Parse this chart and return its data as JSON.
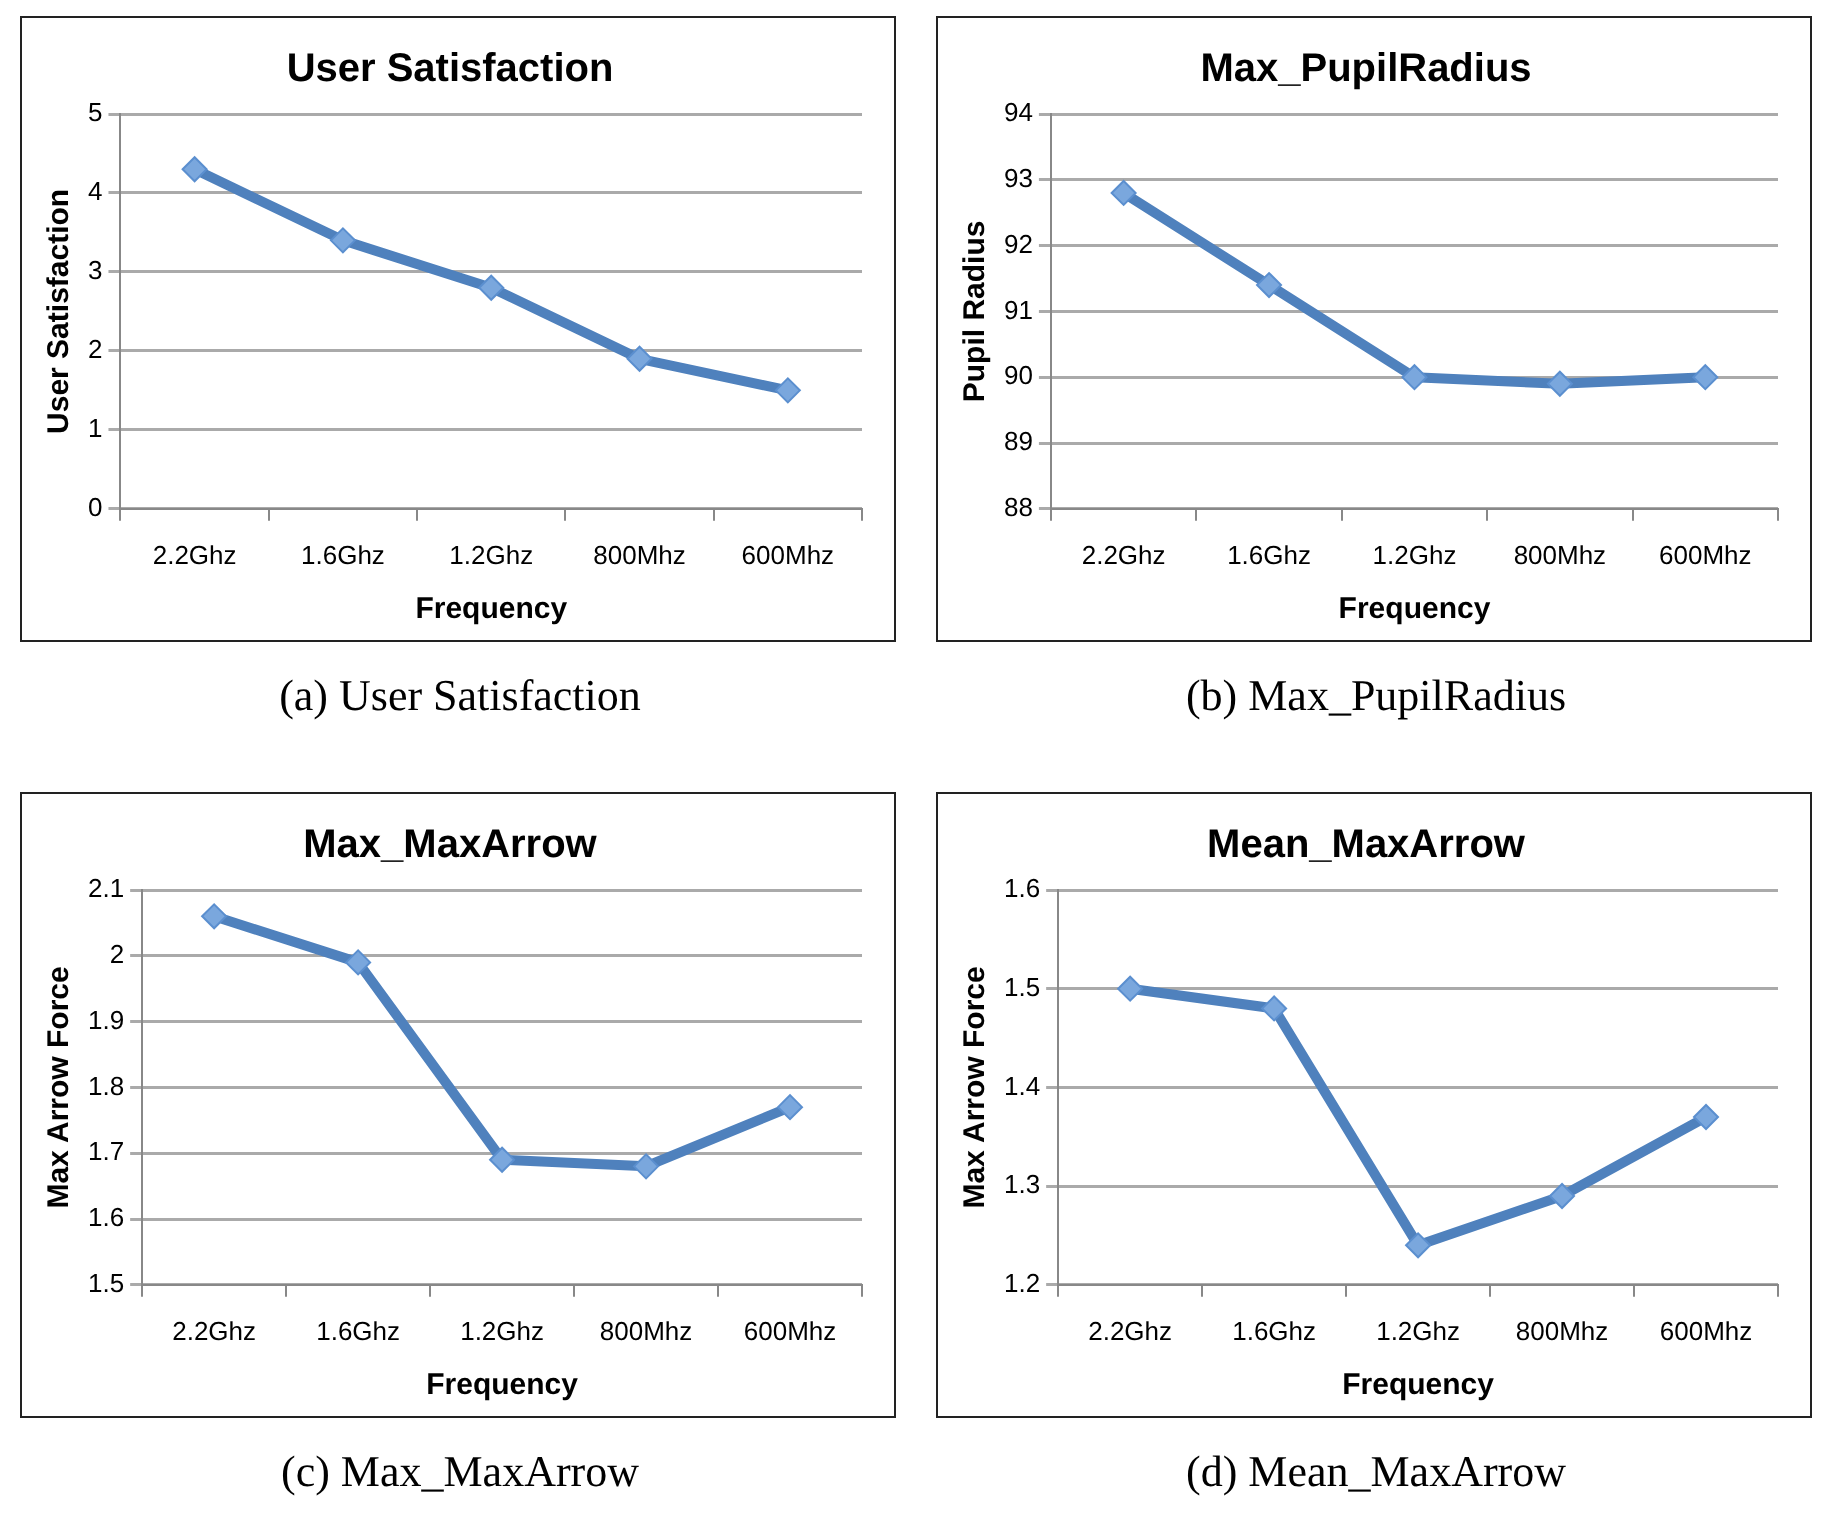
{
  "chart_data": [
    {
      "type": "line",
      "title": "User Satisfaction",
      "xlabel": "Frequency",
      "ylabel": "User Satisfaction",
      "categories": [
        "2.2Ghz",
        "1.6Ghz",
        "1.2Ghz",
        "800Mhz",
        "600Mhz"
      ],
      "series": [
        {
          "color": "#4f81bd",
          "values": [
            4.3,
            3.4,
            2.8,
            1.9,
            1.5
          ]
        }
      ],
      "ylim": [
        0,
        5
      ],
      "yticks": [
        0,
        1,
        2,
        3,
        4,
        5
      ],
      "grid": "y",
      "legend": false,
      "marker": "diamond",
      "line_style": "solid",
      "annotations": [
        "(a) User Satisfaction"
      ]
    },
    {
      "type": "line",
      "title": "Max_PupilRadius",
      "xlabel": "Frequency",
      "ylabel": "Pupil Radius",
      "categories": [
        "2.2Ghz",
        "1.6Ghz",
        "1.2Ghz",
        "800Mhz",
        "600Mhz"
      ],
      "series": [
        {
          "color": "#4f81bd",
          "values": [
            92.8,
            91.4,
            90.0,
            89.9,
            90.0
          ]
        }
      ],
      "ylim": [
        88,
        94
      ],
      "yticks": [
        88,
        89,
        90,
        91,
        92,
        93,
        94
      ],
      "grid": "y",
      "legend": false,
      "marker": "diamond",
      "line_style": "solid",
      "annotations": [
        "(b) Max_PupilRadius"
      ]
    },
    {
      "type": "line",
      "title": "Max_MaxArrow",
      "xlabel": "Frequency",
      "ylabel": "Max Arrow Force",
      "categories": [
        "2.2Ghz",
        "1.6Ghz",
        "1.2Ghz",
        "800Mhz",
        "600Mhz"
      ],
      "series": [
        {
          "color": "#4f81bd",
          "values": [
            2.06,
            1.99,
            1.69,
            1.68,
            1.77
          ]
        }
      ],
      "ylim": [
        1.5,
        2.1
      ],
      "yticks": [
        1.5,
        1.6,
        1.7,
        1.8,
        1.9,
        2,
        2.1
      ],
      "grid": "y",
      "legend": false,
      "marker": "diamond",
      "line_style": "solid",
      "annotations": [
        "(c) Max_MaxArrow"
      ]
    },
    {
      "type": "line",
      "title": "Mean_MaxArrow",
      "xlabel": "Frequency",
      "ylabel": "Max Arrow Force",
      "categories": [
        "2.2Ghz",
        "1.6Ghz",
        "1.2Ghz",
        "800Mhz",
        "600Mhz"
      ],
      "series": [
        {
          "color": "#4f81bd",
          "values": [
            1.5,
            1.48,
            1.24,
            1.29,
            1.37
          ]
        }
      ],
      "ylim": [
        1.2,
        1.6
      ],
      "yticks": [
        1.2,
        1.3,
        1.4,
        1.5,
        1.6
      ],
      "grid": "y",
      "legend": false,
      "marker": "diamond",
      "line_style": "solid",
      "annotations": [
        "(d) Mean_MaxArrow"
      ]
    }
  ]
}
